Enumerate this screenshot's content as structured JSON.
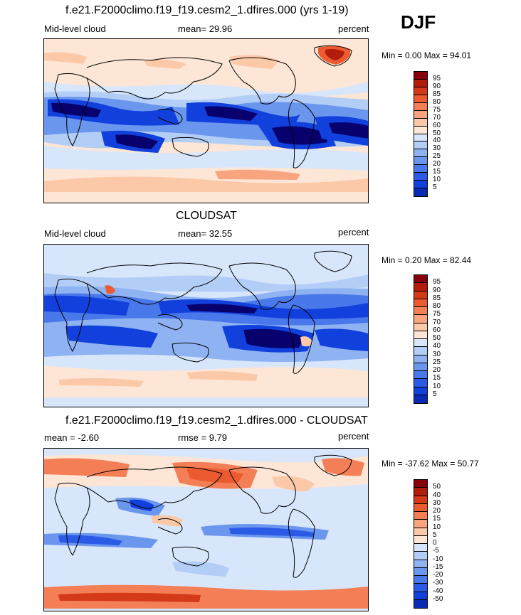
{
  "season": "DJF",
  "unit_label": "percent",
  "palettes": {
    "cloud": [
      "#08006d",
      "#0a2ab4",
      "#1140dc",
      "#2b5be6",
      "#4878ea",
      "#6a96ee",
      "#8eb2f2",
      "#b3cef6",
      "#d8e6fb",
      "#fde6d6",
      "#fbc8a8",
      "#f8a47e",
      "#f47f56",
      "#ec5a30",
      "#d4391a",
      "#b21c0b",
      "#86020c"
    ],
    "diff": [
      "#08006d",
      "#0a2ab4",
      "#1140dc",
      "#2b5be6",
      "#4878ea",
      "#6a96ee",
      "#8eb2f2",
      "#b3cef6",
      "#d8e6fb",
      "#fde6d6",
      "#fbc8a8",
      "#f8a47e",
      "#f47f56",
      "#ec5a30",
      "#d4391a",
      "#b21c0b",
      "#86020c"
    ]
  },
  "panels": [
    {
      "title": "f.e21.F2000climo.f19_f19.cesm2_1.dfires.000 (yrs 1-19)",
      "left_label": "Mid-level cloud",
      "mean_text": "mean=  29.96",
      "right_label": "percent",
      "minmax_text": "Min =   0.00 Max =  94.01"
    },
    {
      "title": "CLOUDSAT",
      "left_label": "Mid-level cloud",
      "mean_text": "mean=  32.55",
      "right_label": "percent",
      "minmax_text": "Min =   0.20 Max =  82.44"
    },
    {
      "title": "f.e21.F2000climo.f19_f19.cesm2_1.dfires.000 - CLOUDSAT",
      "left_label": "mean =  -2.60",
      "mean_text": "rmse =    9.79",
      "right_label": "percent",
      "minmax_text": "Min = -37.62 Max =  50.77"
    }
  ],
  "chart_data": [
    {
      "type": "heatmap",
      "title": "f.e21.F2000climo.f19_f19.cesm2_1.dfires.000 (yrs 1-19)",
      "variable": "Mid-level cloud",
      "units": "percent",
      "mean": 29.96,
      "min": 0.0,
      "max": 94.01,
      "levels": [
        5,
        10,
        15,
        20,
        25,
        30,
        40,
        50,
        60,
        70,
        75,
        80,
        85,
        90,
        95
      ],
      "levels_top_to_bottom": [
        "95",
        "90",
        "85",
        "80",
        "75",
        "70",
        "60",
        "50",
        "40",
        "30",
        "25",
        "20",
        "15",
        "10",
        "5"
      ]
    },
    {
      "type": "heatmap",
      "title": "CLOUDSAT",
      "variable": "Mid-level cloud",
      "units": "percent",
      "mean": 32.55,
      "min": 0.2,
      "max": 82.44,
      "levels": [
        5,
        10,
        15,
        20,
        25,
        30,
        40,
        50,
        60,
        70,
        75,
        80,
        85,
        90,
        95
      ],
      "levels_top_to_bottom": [
        "95",
        "90",
        "85",
        "80",
        "75",
        "70",
        "60",
        "50",
        "40",
        "30",
        "25",
        "20",
        "15",
        "10",
        "5"
      ]
    },
    {
      "type": "heatmap",
      "title": "f.e21.F2000climo.f19_f19.cesm2_1.dfires.000 - CLOUDSAT",
      "units": "percent",
      "mean": -2.6,
      "rmse": 9.79,
      "min": -37.62,
      "max": 50.77,
      "levels": [
        -50,
        -40,
        -30,
        -20,
        -15,
        -10,
        -5,
        0,
        5,
        10,
        15,
        20,
        30,
        40,
        50
      ],
      "levels_top_to_bottom": [
        "50",
        "40",
        "30",
        "20",
        "15",
        "10",
        "5",
        "0",
        "-5",
        "-10",
        "-15",
        "-20",
        "-30",
        "-40",
        "-50"
      ]
    }
  ]
}
